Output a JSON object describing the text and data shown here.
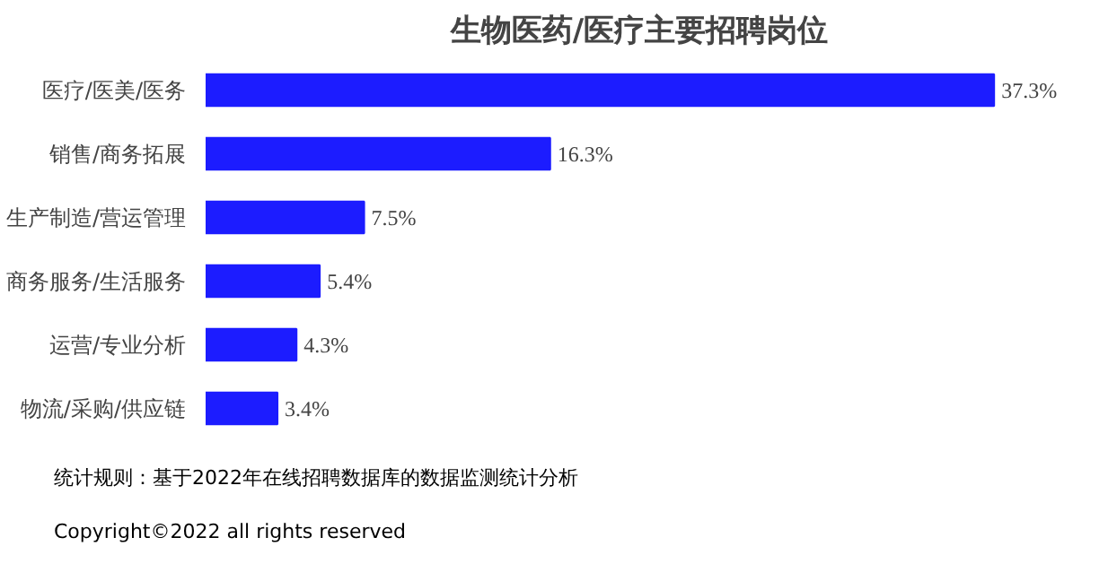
{
  "chart_data": {
    "type": "bar",
    "orientation": "horizontal",
    "title": "生物医药/医疗主要招聘岗位",
    "categories": [
      "医疗/医美/医务",
      "销售/商务拓展",
      "生产制造/营运管理",
      "商务服务/生活服务",
      "运营/专业分析",
      "物流/采购/供应链"
    ],
    "values": [
      37.3,
      16.3,
      7.5,
      5.4,
      4.3,
      3.4
    ],
    "value_labels": [
      "37.3%",
      "16.3%",
      "7.5%",
      "5.4%",
      "4.3%",
      "3.4%"
    ],
    "color": "#1c1cff",
    "grid": false,
    "annotations": [
      "统计规则：基于2022年在线招聘数据库的数据监测统计分析",
      "Copyright©2022 all rights reserved"
    ]
  }
}
